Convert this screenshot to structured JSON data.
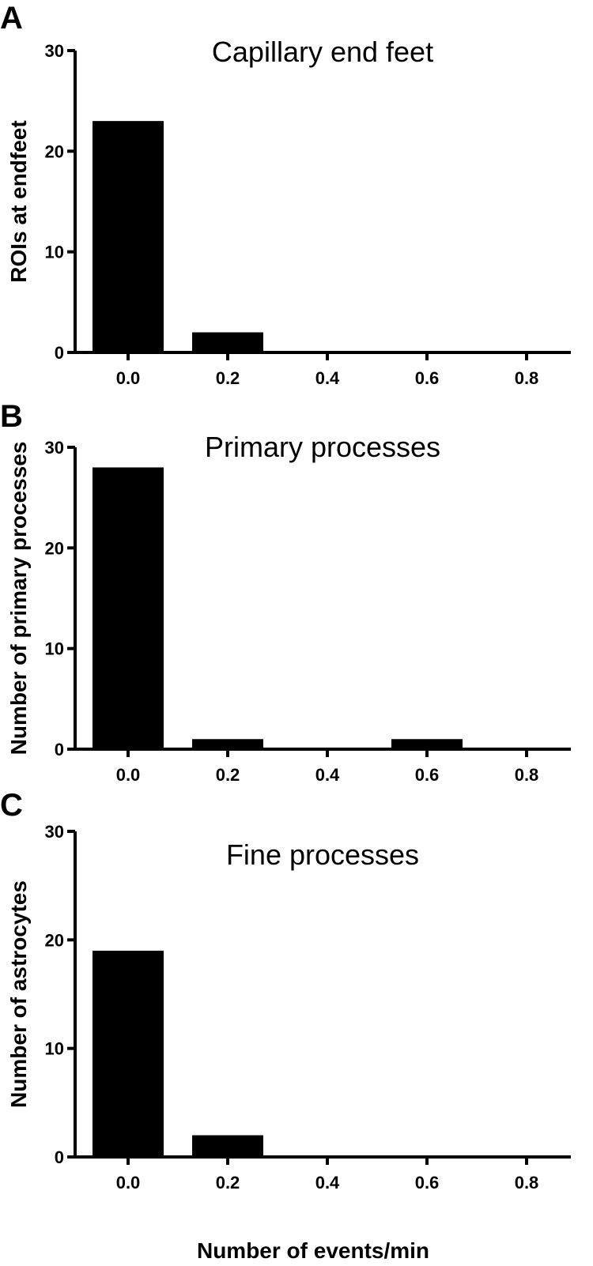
{
  "chart_data": [
    {
      "type": "bar",
      "panel": "A",
      "title": "Capillary end feet",
      "xlabel": "",
      "ylabel": "ROIs at endfeet",
      "categories": [
        "0.0",
        "0.2",
        "0.4",
        "0.6",
        "0.8"
      ],
      "values": [
        23,
        2,
        0,
        0,
        0
      ],
      "ylim": [
        0,
        30
      ],
      "yticks": [
        0,
        10,
        20,
        30
      ],
      "grid": false
    },
    {
      "type": "bar",
      "panel": "B",
      "title": "Primary processes",
      "xlabel": "",
      "ylabel": "Number of primary processes",
      "categories": [
        "0.0",
        "0.2",
        "0.4",
        "0.6",
        "0.8"
      ],
      "values": [
        28,
        1,
        0,
        1,
        0
      ],
      "ylim": [
        0,
        30
      ],
      "yticks": [
        0,
        10,
        20,
        30
      ],
      "grid": false
    },
    {
      "type": "bar",
      "panel": "C",
      "title": "Fine processes",
      "xlabel": "Number of events/min",
      "ylabel": "Number of astrocytes",
      "categories": [
        "0.0",
        "0.2",
        "0.4",
        "0.6",
        "0.8"
      ],
      "values": [
        19,
        2,
        0,
        0,
        0
      ],
      "ylim": [
        0,
        30
      ],
      "yticks": [
        0,
        10,
        20,
        30
      ],
      "grid": false
    }
  ]
}
